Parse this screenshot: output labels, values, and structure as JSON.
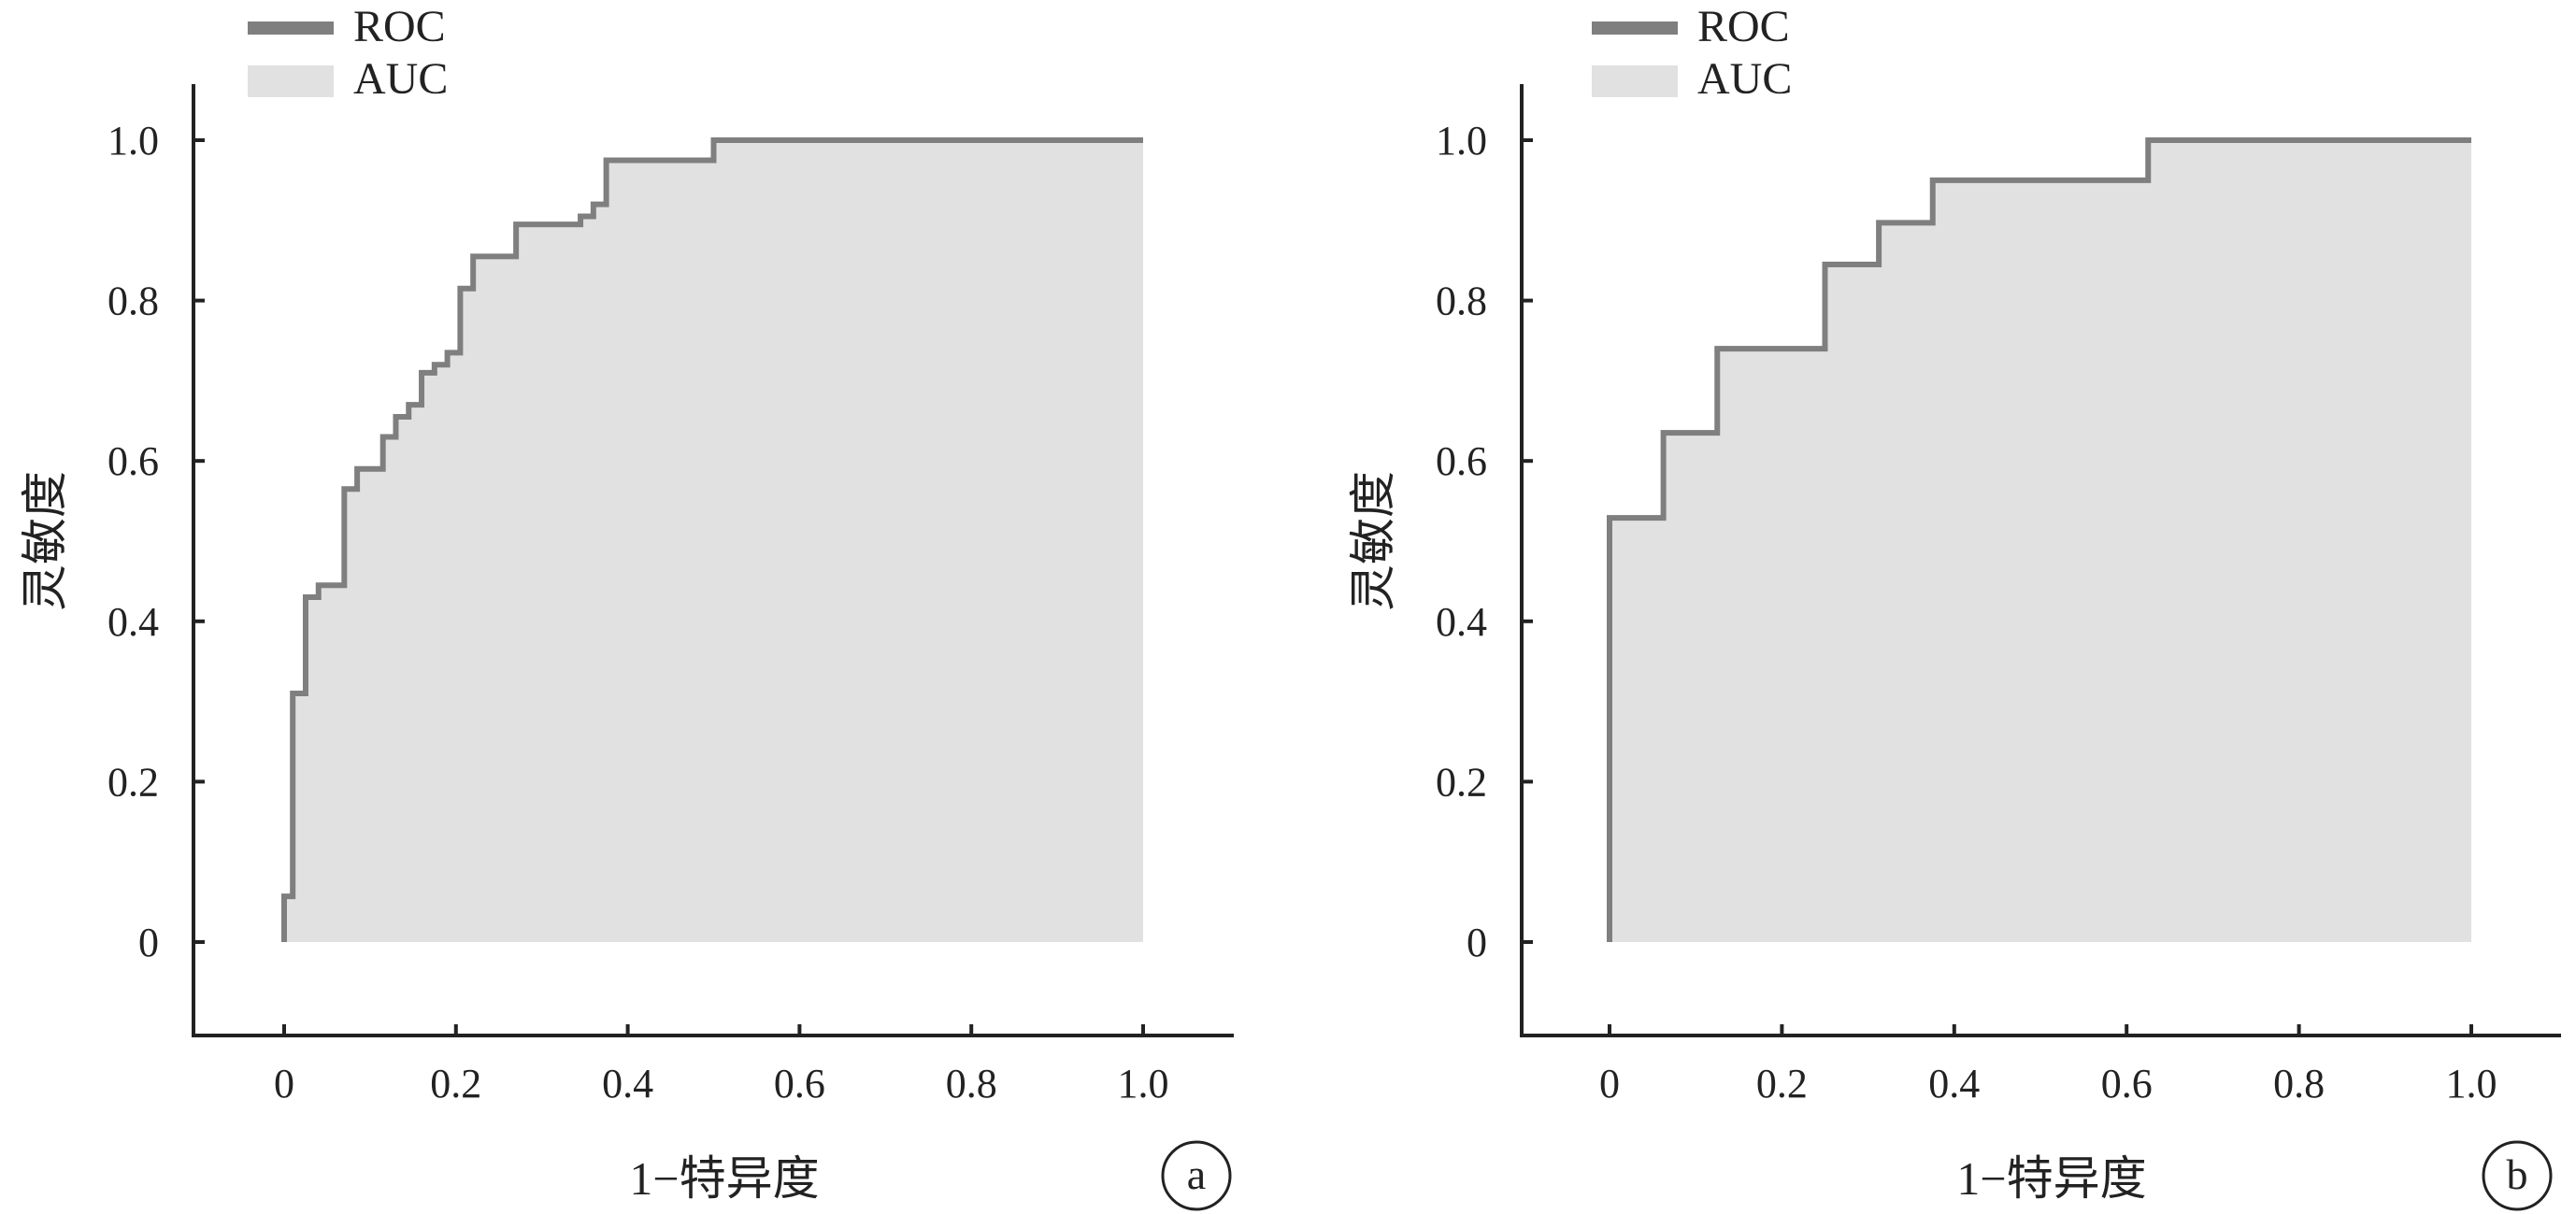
{
  "colors": {
    "roc_line": "#7f7f7f",
    "auc_fill": "#e1e1e1",
    "axis": "#222222",
    "text": "#222222"
  },
  "legend": {
    "roc_label": "ROC",
    "auc_label": "AUC"
  },
  "chart_data": [
    {
      "type": "area",
      "panel_label": "a",
      "xlabel": "1−特异度",
      "ylabel": "灵敏度",
      "xlim": [
        -0.1,
        1.1
      ],
      "ylim": [
        -0.12,
        1.07
      ],
      "x_ticks": [
        0,
        0.2,
        0.4,
        0.6,
        0.8,
        1.0
      ],
      "x_tick_labels": [
        "0",
        "0.2",
        "0.4",
        "0.6",
        "0.8",
        "1.0"
      ],
      "y_ticks": [
        0,
        0.2,
        0.4,
        0.6,
        0.8,
        1.0
      ],
      "y_tick_labels": [
        "0",
        "0.2",
        "0.4",
        "0.6",
        "0.8",
        "1.0"
      ],
      "legend_position": "top-left",
      "grid": false,
      "series": [
        {
          "name": "ROC",
          "x": [
            0,
            0,
            0.01,
            0.01,
            0.025,
            0.025,
            0.04,
            0.04,
            0.07,
            0.07,
            0.085,
            0.085,
            0.115,
            0.115,
            0.13,
            0.13,
            0.145,
            0.145,
            0.16,
            0.16,
            0.175,
            0.175,
            0.19,
            0.19,
            0.205,
            0.205,
            0.22,
            0.22,
            0.27,
            0.27,
            0.345,
            0.345,
            0.36,
            0.36,
            0.375,
            0.375,
            0.5,
            0.5,
            1.0
          ],
          "y": [
            0,
            0.057,
            0.057,
            0.31,
            0.31,
            0.43,
            0.43,
            0.445,
            0.445,
            0.565,
            0.565,
            0.59,
            0.59,
            0.63,
            0.63,
            0.655,
            0.655,
            0.67,
            0.67,
            0.71,
            0.71,
            0.72,
            0.72,
            0.735,
            0.735,
            0.815,
            0.815,
            0.855,
            0.855,
            0.895,
            0.895,
            0.905,
            0.905,
            0.92,
            0.92,
            0.975,
            0.975,
            1.0,
            1.0
          ]
        },
        {
          "name": "AUC",
          "fill_under": "ROC"
        }
      ]
    },
    {
      "type": "area",
      "panel_label": "b",
      "xlabel": "1−特异度",
      "ylabel": "灵敏度",
      "xlim": [
        -0.1,
        1.1
      ],
      "ylim": [
        -0.12,
        1.07
      ],
      "x_ticks": [
        0,
        0.2,
        0.4,
        0.6,
        0.8,
        1.0
      ],
      "x_tick_labels": [
        "0",
        "0.2",
        "0.4",
        "0.6",
        "0.8",
        "1.0"
      ],
      "y_ticks": [
        0,
        0.2,
        0.4,
        0.6,
        0.8,
        1.0
      ],
      "y_tick_labels": [
        "0",
        "0.2",
        "0.4",
        "0.6",
        "0.8",
        "1.0"
      ],
      "legend_position": "top-left",
      "grid": false,
      "series": [
        {
          "name": "ROC",
          "x": [
            0,
            0,
            0.0625,
            0.0625,
            0.125,
            0.125,
            0.25,
            0.25,
            0.3125,
            0.3125,
            0.375,
            0.375,
            0.625,
            0.625,
            1.0
          ],
          "y": [
            0,
            0.529,
            0.529,
            0.635,
            0.635,
            0.74,
            0.74,
            0.845,
            0.845,
            0.897,
            0.897,
            0.95,
            0.95,
            1.0,
            1.0
          ]
        },
        {
          "name": "AUC",
          "fill_under": "ROC"
        }
      ]
    }
  ]
}
